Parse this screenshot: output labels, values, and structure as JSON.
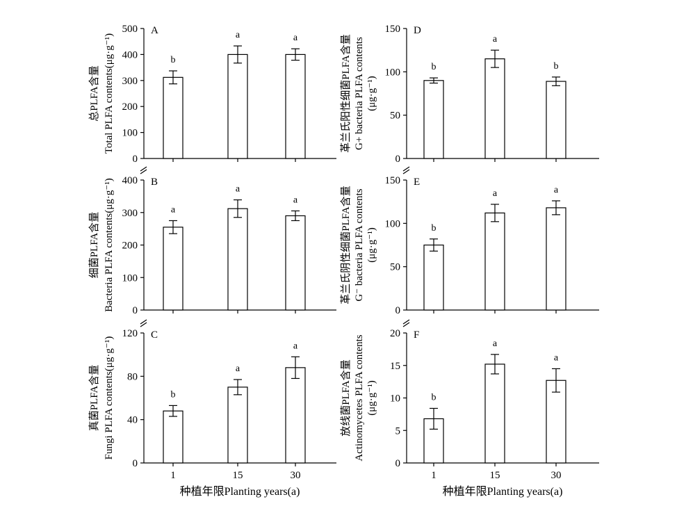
{
  "chart_data": [
    {
      "type": "bar",
      "panel": "A",
      "ylabel_cn": "总PLFA含量",
      "ylabel_en": "Total PLFA contents(μg·g⁻¹)",
      "ylim": [
        0,
        500
      ],
      "yticks": [
        0,
        100,
        200,
        300,
        400,
        500
      ],
      "categories": [
        "1",
        "15",
        "30"
      ],
      "values": [
        312,
        400,
        400
      ],
      "errors": [
        25,
        33,
        22
      ],
      "significance": [
        "b",
        "a",
        "a"
      ]
    },
    {
      "type": "bar",
      "panel": "B",
      "ylabel_cn": "细菌PLFA含量",
      "ylabel_en": "Bacteria PLFA contents(μg·g⁻¹)",
      "ylim": [
        0,
        400
      ],
      "yticks": [
        0,
        100,
        200,
        300,
        400
      ],
      "categories": [
        "1",
        "15",
        "30"
      ],
      "values": [
        255,
        312,
        290
      ],
      "errors": [
        20,
        27,
        15
      ],
      "significance": [
        "a",
        "a",
        "a"
      ]
    },
    {
      "type": "bar",
      "panel": "C",
      "ylabel_cn": "真菌PLFA含量",
      "ylabel_en": "Fungi PLFA contents(μg·g⁻¹)",
      "ylim": [
        0,
        120
      ],
      "yticks": [
        0,
        40,
        80,
        120
      ],
      "categories": [
        "1",
        "15",
        "30"
      ],
      "values": [
        48,
        70,
        88
      ],
      "errors": [
        5,
        7,
        10
      ],
      "significance": [
        "b",
        "a",
        "a"
      ]
    },
    {
      "type": "bar",
      "panel": "D",
      "ylabel_cn": "革兰氏阳性细菌PLFA含量",
      "ylabel_en": "G+ bacteria PLFA contents",
      "ylabel_unit": "(μg·g⁻¹)",
      "ylim": [
        0,
        150
      ],
      "yticks": [
        0,
        50,
        100,
        150
      ],
      "categories": [
        "1",
        "15",
        "30"
      ],
      "values": [
        90,
        115,
        89
      ],
      "errors": [
        3,
        10,
        5
      ],
      "significance": [
        "b",
        "a",
        "b"
      ]
    },
    {
      "type": "bar",
      "panel": "E",
      "ylabel_cn": "革兰氏阴性细菌PLFA含量",
      "ylabel_en": "G⁻ bacteria PLFA contents",
      "ylabel_unit": "(μg·g⁻¹)",
      "ylim": [
        0,
        150
      ],
      "yticks": [
        0,
        50,
        100,
        150
      ],
      "categories": [
        "1",
        "15",
        "30"
      ],
      "values": [
        75,
        112,
        118
      ],
      "errors": [
        7,
        10,
        8
      ],
      "significance": [
        "b",
        "a",
        "a"
      ]
    },
    {
      "type": "bar",
      "panel": "F",
      "ylabel_cn": "放线菌PLFA含量",
      "ylabel_en": "Actinomycetes PLFA contents",
      "ylabel_unit": "(μg·g⁻¹)",
      "ylim": [
        0,
        20
      ],
      "yticks": [
        0,
        5,
        10,
        15,
        20
      ],
      "categories": [
        "1",
        "15",
        "30"
      ],
      "values": [
        6.8,
        15.2,
        12.7
      ],
      "errors": [
        1.6,
        1.5,
        1.8
      ],
      "significance": [
        "b",
        "a",
        "a"
      ]
    }
  ],
  "xlabel": "种植年限Planting years(a)"
}
